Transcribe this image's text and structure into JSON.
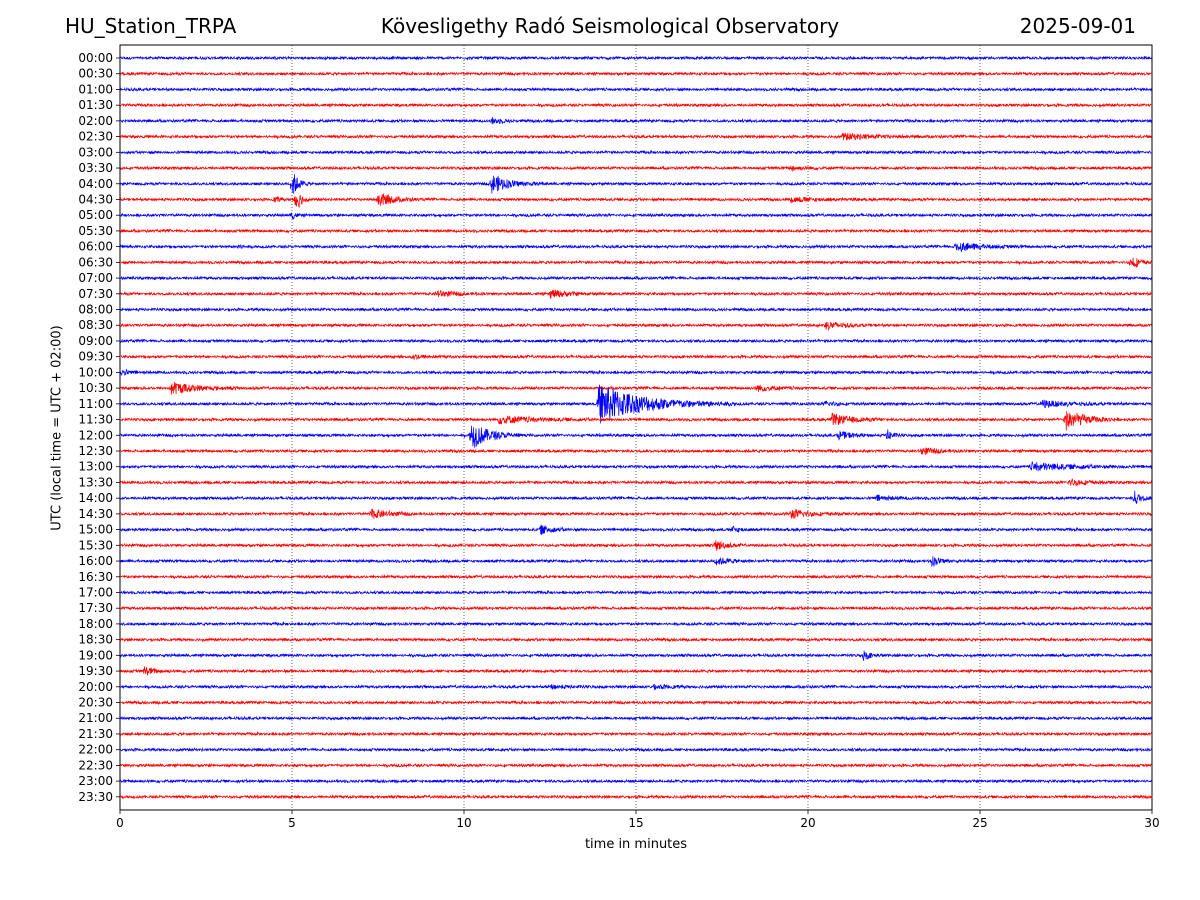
{
  "header": {
    "station": "HU_Station_TRPA",
    "observatory": "Kövesligethy Radó Seismological Observatory",
    "date": "2025-09-01"
  },
  "chart_data": {
    "type": "line",
    "subtype": "helicorder",
    "xlabel": "time in minutes",
    "ylabel": "UTC (local time = UTC + 02:00)",
    "xlim": [
      0,
      30
    ],
    "x_ticks": [
      0,
      5,
      10,
      15,
      20,
      25,
      30
    ],
    "grid": "vertical dotted at each x tick",
    "row_labels": [
      "00:00",
      "00:30",
      "01:00",
      "01:30",
      "02:00",
      "02:30",
      "03:00",
      "03:30",
      "04:00",
      "04:30",
      "05:00",
      "05:30",
      "06:00",
      "06:30",
      "07:00",
      "07:30",
      "08:00",
      "08:30",
      "09:00",
      "09:30",
      "10:00",
      "10:30",
      "11:00",
      "11:30",
      "12:00",
      "12:30",
      "13:00",
      "13:30",
      "14:00",
      "14:30",
      "15:00",
      "15:30",
      "16:00",
      "16:30",
      "17:00",
      "17:30",
      "18:00",
      "18:30",
      "19:00",
      "19:30",
      "20:00",
      "20:30",
      "21:00",
      "21:30",
      "22:00",
      "22:30",
      "23:00",
      "23:30"
    ],
    "colors": [
      "#0000ff",
      "#ff0000"
    ],
    "events": [
      {
        "row": "02:00",
        "minute": 10.8,
        "amplitude": 0.2,
        "duration": 0.8
      },
      {
        "row": "02:30",
        "minute": 21.0,
        "amplitude": 0.2,
        "duration": 2.5
      },
      {
        "row": "03:30",
        "minute": 19.5,
        "amplitude": 0.15,
        "duration": 1.0
      },
      {
        "row": "04:00",
        "minute": 5.0,
        "amplitude": 0.9,
        "duration": 0.5
      },
      {
        "row": "04:00",
        "minute": 10.8,
        "amplitude": 0.6,
        "duration": 1.5
      },
      {
        "row": "04:30",
        "minute": 4.5,
        "amplitude": 0.25,
        "duration": 0.3
      },
      {
        "row": "04:30",
        "minute": 5.1,
        "amplitude": 1.0,
        "duration": 0.4
      },
      {
        "row": "04:30",
        "minute": 7.5,
        "amplitude": 0.5,
        "duration": 1.2
      },
      {
        "row": "04:30",
        "minute": 19.5,
        "amplitude": 0.15,
        "duration": 2.0
      },
      {
        "row": "05:00",
        "minute": 5.0,
        "amplitude": 0.3,
        "duration": 0.3
      },
      {
        "row": "06:00",
        "minute": 3.4,
        "amplitude": 0.15,
        "duration": 0.5
      },
      {
        "row": "06:00",
        "minute": 24.3,
        "amplitude": 0.3,
        "duration": 2.0
      },
      {
        "row": "06:30",
        "minute": 29.4,
        "amplitude": 0.5,
        "duration": 0.6
      },
      {
        "row": "07:30",
        "minute": 9.2,
        "amplitude": 0.2,
        "duration": 1.5
      },
      {
        "row": "07:30",
        "minute": 12.5,
        "amplitude": 0.25,
        "duration": 1.5
      },
      {
        "row": "08:30",
        "minute": 20.5,
        "amplitude": 0.25,
        "duration": 1.5
      },
      {
        "row": "09:30",
        "minute": 8.5,
        "amplitude": 0.15,
        "duration": 1.0
      },
      {
        "row": "10:00",
        "minute": 0.0,
        "amplitude": 0.2,
        "duration": 0.8
      },
      {
        "row": "10:30",
        "minute": 1.5,
        "amplitude": 0.4,
        "duration": 2.0
      },
      {
        "row": "10:30",
        "minute": 18.5,
        "amplitude": 0.2,
        "duration": 1.5
      },
      {
        "row": "11:00",
        "minute": 13.9,
        "amplitude": 1.3,
        "duration": 4.0
      },
      {
        "row": "11:00",
        "minute": 20.5,
        "amplitude": 0.15,
        "duration": 1.0
      },
      {
        "row": "11:00",
        "minute": 26.8,
        "amplitude": 0.2,
        "duration": 2.5
      },
      {
        "row": "11:30",
        "minute": 11.0,
        "amplitude": 0.25,
        "duration": 3.0
      },
      {
        "row": "11:30",
        "minute": 20.7,
        "amplitude": 0.35,
        "duration": 1.6
      },
      {
        "row": "11:30",
        "minute": 27.5,
        "amplitude": 0.7,
        "duration": 1.5
      },
      {
        "row": "12:00",
        "minute": 10.2,
        "amplitude": 0.9,
        "duration": 1.5
      },
      {
        "row": "12:00",
        "minute": 20.9,
        "amplitude": 0.25,
        "duration": 1.2
      },
      {
        "row": "12:00",
        "minute": 22.3,
        "amplitude": 0.35,
        "duration": 0.5
      },
      {
        "row": "12:30",
        "minute": 23.3,
        "amplitude": 0.2,
        "duration": 1.5
      },
      {
        "row": "13:00",
        "minute": 26.5,
        "amplitude": 0.25,
        "duration": 3.5
      },
      {
        "row": "13:30",
        "minute": 27.6,
        "amplitude": 0.2,
        "duration": 1.5
      },
      {
        "row": "14:00",
        "minute": 22.0,
        "amplitude": 0.15,
        "duration": 1.5
      },
      {
        "row": "14:00",
        "minute": 29.5,
        "amplitude": 0.45,
        "duration": 0.5
      },
      {
        "row": "14:30",
        "minute": 7.3,
        "amplitude": 0.3,
        "duration": 1.5
      },
      {
        "row": "14:30",
        "minute": 19.5,
        "amplitude": 0.3,
        "duration": 1.6
      },
      {
        "row": "15:00",
        "minute": 12.2,
        "amplitude": 0.3,
        "duration": 1.0
      },
      {
        "row": "15:00",
        "minute": 17.8,
        "amplitude": 0.2,
        "duration": 0.6
      },
      {
        "row": "15:30",
        "minute": 17.3,
        "amplitude": 0.35,
        "duration": 0.8
      },
      {
        "row": "16:00",
        "minute": 17.3,
        "amplitude": 0.25,
        "duration": 1.2
      },
      {
        "row": "16:00",
        "minute": 23.6,
        "amplitude": 0.3,
        "duration": 0.8
      },
      {
        "row": "19:00",
        "minute": 21.6,
        "amplitude": 0.3,
        "duration": 0.6
      },
      {
        "row": "19:30",
        "minute": 0.7,
        "amplitude": 0.3,
        "duration": 0.8
      },
      {
        "row": "20:00",
        "minute": 12.5,
        "amplitude": 0.12,
        "duration": 1.5
      },
      {
        "row": "20:00",
        "minute": 15.5,
        "amplitude": 0.12,
        "duration": 1.5
      }
    ]
  }
}
